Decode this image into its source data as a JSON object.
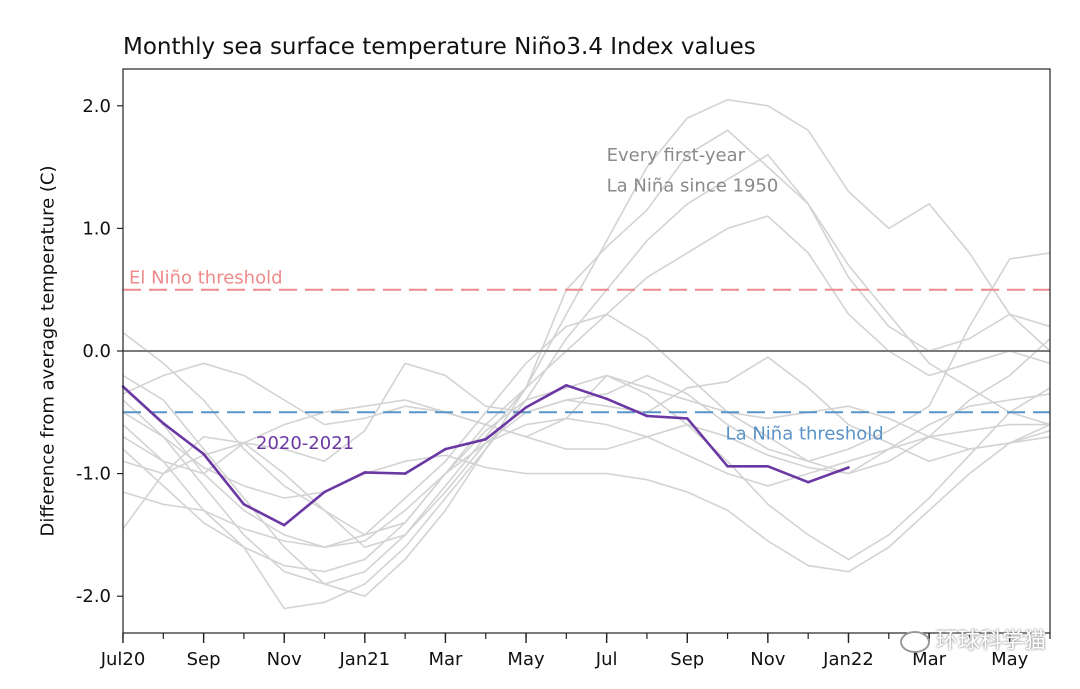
{
  "chart_data": {
    "type": "line",
    "title": "Monthly sea surface temperature Niño3.4 Index values",
    "xlabel": "",
    "ylabel": "Difference from average temperature (C)",
    "ylim": [
      -2.3,
      2.3
    ],
    "yticks": [
      -2.0,
      -1.0,
      0.0,
      1.0,
      2.0
    ],
    "ytick_labels": [
      "-2.0",
      "-1.0",
      "0.0",
      "1.0",
      "2.0"
    ],
    "xlim": [
      0,
      23
    ],
    "xtick_positions": [
      0,
      2,
      4,
      6,
      8,
      10,
      12,
      14,
      16,
      18,
      20,
      22
    ],
    "xtick_labels": [
      "Jul20",
      "Sep",
      "Nov",
      "Jan21",
      "Mar",
      "May",
      "Jul",
      "Sep",
      "Nov",
      "Jan22",
      "Mar",
      "May"
    ],
    "minor_ticks_every": 1,
    "reference_lines": [
      {
        "name": "zero",
        "y": 0.0,
        "color": "#7a7a7a",
        "style": "solid",
        "label": ""
      },
      {
        "name": "el-nino-threshold",
        "y": 0.5,
        "color": "#f08a8a",
        "style": "dashed",
        "label": "El Niño threshold"
      },
      {
        "name": "la-nina-threshold",
        "y": -0.5,
        "color": "#5a93c8",
        "style": "dashed",
        "label": "La Niña threshold"
      }
    ],
    "background_series_label": "Every first-year La Niña since 1950",
    "background_series_color": "#d3d3d3",
    "series": [
      {
        "name": "2020-2021",
        "color": "#6b38a3",
        "x": [
          0,
          1,
          2,
          3,
          4,
          5,
          6,
          7,
          8,
          9,
          10,
          11,
          12,
          13,
          14,
          15,
          16,
          17,
          18
        ],
        "values": [
          -0.29,
          -0.59,
          -0.84,
          -1.25,
          -1.42,
          -1.15,
          -0.99,
          -1.0,
          -0.8,
          -0.72,
          -0.46,
          -0.28,
          -0.39,
          -0.53,
          -0.55,
          -0.94,
          -0.94,
          -1.07,
          -0.95
        ]
      }
    ],
    "background_series": [
      {
        "name": "la-nina-a",
        "values": [
          -0.3,
          -0.6,
          -1.0,
          -1.3,
          -1.5,
          -1.6,
          -1.5,
          -1.2,
          -0.9,
          -0.5,
          -0.1,
          0.2,
          0.3,
          0.1,
          -0.2,
          -0.5,
          -0.7,
          -0.9,
          -1.0,
          -0.9,
          -0.7,
          -0.4,
          -0.2,
          0.1
        ]
      },
      {
        "name": "la-nina-b",
        "values": [
          -0.5,
          -0.7,
          -1.1,
          -1.5,
          -1.8,
          -1.9,
          -1.8,
          -1.5,
          -1.1,
          -0.7,
          -0.3,
          0.0,
          0.3,
          0.6,
          0.8,
          1.0,
          1.1,
          0.8,
          0.3,
          0.0,
          -0.2,
          -0.1,
          0.0,
          -0.1
        ]
      },
      {
        "name": "la-nina-c",
        "values": [
          -0.2,
          -0.4,
          -0.8,
          -1.2,
          -1.6,
          -1.9,
          -2.0,
          -1.7,
          -1.3,
          -0.8,
          -0.3,
          0.3,
          0.9,
          1.5,
          1.9,
          2.05,
          2.0,
          1.8,
          1.3,
          1.0,
          1.2,
          0.8,
          0.3,
          0.0
        ]
      },
      {
        "name": "la-nina-d",
        "values": [
          -0.6,
          -0.9,
          -1.3,
          -1.6,
          -2.1,
          -2.05,
          -1.9,
          -1.6,
          -1.2,
          -0.8,
          -0.4,
          0.1,
          0.5,
          0.9,
          1.2,
          1.4,
          1.6,
          1.2,
          0.7,
          0.3,
          -0.1,
          -0.3,
          -0.5,
          -0.6
        ]
      },
      {
        "name": "la-nina-e",
        "values": [
          0.15,
          -0.1,
          -0.4,
          -0.8,
          -1.1,
          -1.3,
          -1.5,
          -1.4,
          -1.0,
          -0.6,
          -0.3,
          0.5,
          0.85,
          1.15,
          1.6,
          1.8,
          1.5,
          1.2,
          0.6,
          0.2,
          0.0,
          0.1,
          0.3,
          0.2
        ]
      },
      {
        "name": "la-nina-f",
        "values": [
          -1.15,
          -1.25,
          -1.3,
          -1.45,
          -1.55,
          -1.6,
          -1.55,
          -1.3,
          -1.0,
          -0.75,
          -0.6,
          -0.55,
          -0.6,
          -0.7,
          -0.85,
          -1.0,
          -1.1,
          -1.0,
          -0.9,
          -0.8,
          -0.7,
          -0.65,
          -0.6,
          -0.6
        ]
      },
      {
        "name": "la-nina-g",
        "values": [
          -0.8,
          -1.1,
          -1.4,
          -1.6,
          -1.75,
          -1.8,
          -1.7,
          -1.4,
          -1.0,
          -0.65,
          -0.4,
          -0.3,
          -0.2,
          -0.35,
          -0.6,
          -0.9,
          -1.25,
          -1.5,
          -1.7,
          -1.5,
          -1.2,
          -0.85,
          -0.5,
          -0.3
        ]
      },
      {
        "name": "la-nina-h",
        "values": [
          -0.4,
          -0.7,
          -0.95,
          -1.1,
          -1.2,
          -1.15,
          -1.0,
          -0.9,
          -0.85,
          -0.95,
          -1.0,
          -1.0,
          -1.0,
          -1.05,
          -1.15,
          -1.3,
          -1.55,
          -1.75,
          -1.8,
          -1.6,
          -1.3,
          -1.0,
          -0.75,
          -0.6
        ]
      },
      {
        "name": "la-nina-i",
        "values": [
          -0.7,
          -0.9,
          -1.0,
          -0.75,
          -0.6,
          -0.5,
          -0.45,
          -0.4,
          -0.5,
          -0.6,
          -0.7,
          -0.8,
          -0.8,
          -0.7,
          -0.6,
          -0.7,
          -0.85,
          -0.95,
          -1.0,
          -0.8,
          -0.6,
          -0.45,
          -0.4,
          -0.35
        ]
      },
      {
        "name": "la-nina-j",
        "values": [
          -0.35,
          -0.2,
          -0.1,
          -0.2,
          -0.4,
          -0.6,
          -0.55,
          -0.45,
          -0.5,
          -0.6,
          -0.7,
          -0.55,
          -0.2,
          -0.3,
          -0.4,
          -0.5,
          -0.55,
          -0.5,
          -0.45,
          -0.55,
          -0.7,
          -0.8,
          -0.75,
          -0.65
        ]
      },
      {
        "name": "la-nina-k",
        "values": [
          -0.9,
          -1.0,
          -0.85,
          -0.75,
          -0.8,
          -0.9,
          -0.65,
          -0.1,
          -0.2,
          -0.45,
          -0.5,
          -0.4,
          -0.35,
          -0.2,
          -0.35,
          -0.6,
          -0.8,
          -0.9,
          -0.8,
          -0.65,
          -0.45,
          0.2,
          0.75,
          0.8
        ]
      },
      {
        "name": "la-nina-l",
        "values": [
          -1.45,
          -1.0,
          -0.7,
          -0.75,
          -1.0,
          -1.3,
          -1.6,
          -1.5,
          -1.15,
          -0.75,
          -0.5,
          -0.4,
          -0.45,
          -0.5,
          -0.3,
          -0.25,
          -0.05,
          -0.3,
          -0.6,
          -0.75,
          -0.9,
          -0.8,
          -0.75,
          -0.7
        ]
      }
    ],
    "annotations": [
      {
        "name": "series-label-2020-2021",
        "text": "2020-2021",
        "x": 3.3,
        "y": -0.8,
        "color": "#6b38a3"
      },
      {
        "name": "background-label-line1",
        "text": "Every first-year",
        "x": 12.0,
        "y": 1.55,
        "color": "#8a8a8a"
      },
      {
        "name": "background-label-line2",
        "text": "La Niña since 1950",
        "x": 12.0,
        "y": 1.3,
        "color": "#8a8a8a"
      }
    ]
  },
  "watermark": {
    "text": "环球科学猫"
  }
}
